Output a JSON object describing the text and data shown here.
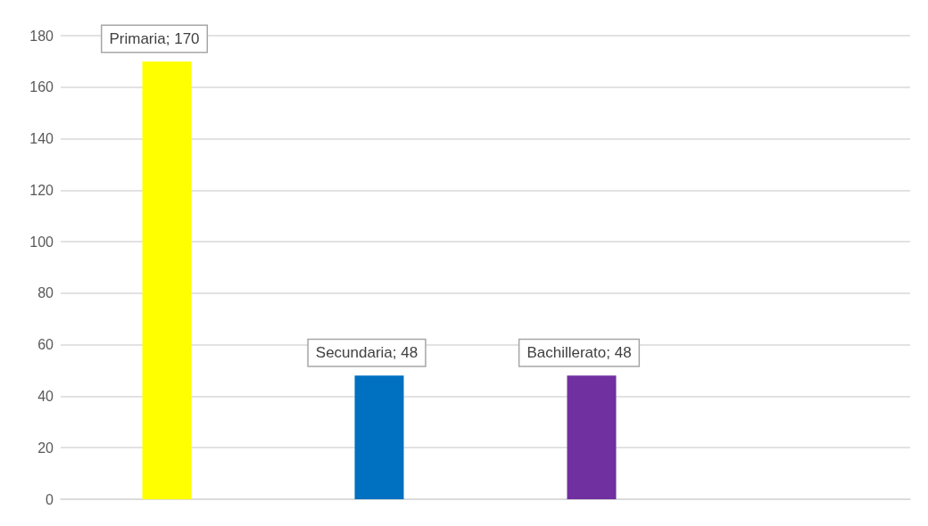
{
  "chart_data": {
    "type": "bar",
    "categories": [
      null,
      null,
      null,
      null
    ],
    "values": [
      170,
      48,
      48,
      null
    ],
    "colors": [
      "#ffff00",
      "#0070c0",
      "#7030a0",
      "#000000"
    ],
    "value_labels": [
      "Primaria; 170",
      "Secundaria; 48",
      "Bachillerato; 48",
      null
    ],
    "ylim": [
      0,
      180
    ],
    "yticks": [
      0,
      20,
      40,
      60,
      80,
      100,
      120,
      140,
      160,
      180
    ],
    "grid": "y"
  }
}
